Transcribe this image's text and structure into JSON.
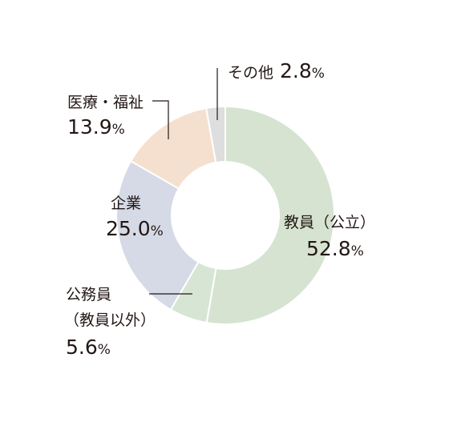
{
  "chart_data": {
    "type": "pie",
    "style": "donut",
    "unit": "%",
    "slices": [
      {
        "name": "教員（公立）",
        "value": 52.8,
        "color": "#d5e3d0"
      },
      {
        "name": "公務員",
        "name_line2": "（教員以外）",
        "value": 5.6,
        "color": "#d7e6d4"
      },
      {
        "name": "企業",
        "value": 25.0,
        "color": "#d5dae6"
      },
      {
        "name": "医療・福祉",
        "value": 13.9,
        "color": "#f5e0d0"
      },
      {
        "name": "その他",
        "value": 2.8,
        "color": "#dedede"
      }
    ],
    "value_labels": [
      "52.8",
      "5.6",
      "25.0",
      "13.9",
      "2.8"
    ]
  }
}
